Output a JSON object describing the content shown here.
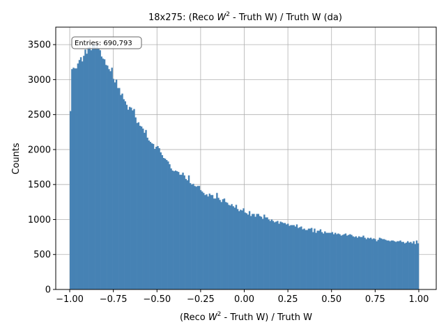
{
  "chart_data": {
    "type": "bar",
    "title_main": "18x275: (Reco ",
    "title_var": "W",
    "title_sup": "2",
    "title_rest": " - Truth W) / Truth W (da)",
    "xlabel_main": "(Reco ",
    "xlabel_var": "W",
    "xlabel_sup": "2",
    "xlabel_rest": " - Truth W) / Truth W",
    "ylabel": "Counts",
    "stats_label": "Entries: 690,793",
    "xlim": [
      -1.08,
      1.1
    ],
    "ylim": [
      0,
      3750
    ],
    "x_ticks": [
      -1.0,
      -0.75,
      -0.5,
      -0.25,
      0.0,
      0.25,
      0.5,
      0.75,
      1.0
    ],
    "x_tick_labels": [
      "−1.00",
      "−0.75",
      "−0.50",
      "−0.25",
      "0.00",
      "0.25",
      "0.50",
      "0.75",
      "1.00"
    ],
    "y_ticks": [
      0,
      500,
      1000,
      1500,
      2000,
      2500,
      3000,
      3500
    ],
    "y_tick_labels": [
      "0",
      "500",
      "1000",
      "1500",
      "2000",
      "2500",
      "3000",
      "3500"
    ],
    "grid": true,
    "bar_color": "#4682b4",
    "bin_range": [
      -1.0,
      1.0
    ],
    "values": [
      2550,
      3150,
      3170,
      3160,
      3160,
      3230,
      3280,
      3320,
      3260,
      3340,
      3430,
      3370,
      3460,
      3470,
      3420,
      3500,
      3510,
      3460,
      3490,
      3450,
      3420,
      3330,
      3300,
      3290,
      3210,
      3200,
      3150,
      3120,
      3170,
      3010,
      2960,
      3000,
      2880,
      2880,
      2780,
      2800,
      2720,
      2690,
      2640,
      2570,
      2610,
      2600,
      2560,
      2580,
      2460,
      2380,
      2390,
      2340,
      2330,
      2300,
      2240,
      2280,
      2170,
      2130,
      2110,
      2090,
      2080,
      2010,
      2040,
      2050,
      2020,
      1960,
      1920,
      1880,
      1870,
      1850,
      1830,
      1790,
      1730,
      1700,
      1690,
      1700,
      1690,
      1680,
      1640,
      1640,
      1670,
      1630,
      1580,
      1560,
      1630,
      1520,
      1500,
      1510,
      1480,
      1470,
      1480,
      1480,
      1420,
      1400,
      1380,
      1350,
      1360,
      1330,
      1370,
      1350,
      1350,
      1300,
      1300,
      1380,
      1310,
      1280,
      1250,
      1290,
      1300,
      1250,
      1240,
      1210,
      1200,
      1220,
      1190,
      1170,
      1210,
      1150,
      1120,
      1140,
      1130,
      1160,
      1100,
      1090,
      1070,
      1120,
      1050,
      1080,
      1080,
      1040,
      1080,
      1080,
      1050,
      1040,
      1010,
      1070,
      1030,
      1030,
      1000,
      980,
      1000,
      980,
      960,
      970,
      980,
      940,
      970,
      960,
      950,
      950,
      930,
      940,
      910,
      920,
      920,
      920,
      900,
      930,
      880,
      890,
      900,
      860,
      870,
      850,
      850,
      870,
      870,
      880,
      820,
      870,
      810,
      840,
      840,
      860,
      820,
      800,
      830,
      810,
      810,
      810,
      810,
      820,
      790,
      810,
      790,
      800,
      790,
      770,
      780,
      790,
      800,
      770,
      780,
      790,
      780,
      760,
      750,
      760,
      740,
      760,
      750,
      750,
      770,
      740,
      720,
      740,
      730,
      740,
      720,
      730,
      720,
      690,
      710,
      740,
      730,
      720,
      720,
      710,
      700,
      700,
      690,
      700,
      700,
      690,
      680,
      690,
      690,
      700,
      680,
      680,
      660,
      670,
      690,
      670,
      680,
      660,
      690,
      650,
      700,
      660
    ]
  }
}
